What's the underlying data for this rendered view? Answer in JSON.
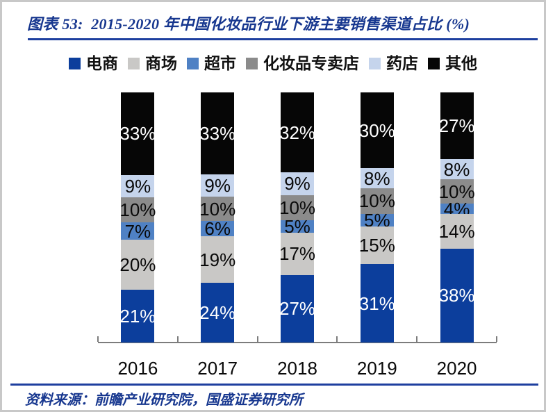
{
  "figure": {
    "title": "图表 53:  2015-2020 年中国化妆品行业下游主要销售渠道占比 (%)",
    "source": "资料来源：前瞻产业研究院，国盛证券研究所"
  },
  "colors": {
    "title_blue": "#17378F",
    "rule_blue": "#1E3F9F",
    "axis_gray": "#7C7C7C",
    "frame_gray": "#C8C8C8",
    "label_black": "#0A0A0A"
  },
  "chart_data": {
    "type": "bar",
    "stacked": true,
    "percent_normalized": true,
    "title": "2015-2020 年中国化妆品行业下游主要销售渠道占比 (%)",
    "categories": [
      "2016",
      "2017",
      "2018",
      "2019",
      "2020"
    ],
    "series": [
      {
        "name": "电商",
        "color": "#0C3E9C",
        "label_color": "#FFFFFF",
        "values": [
          21,
          24,
          27,
          31,
          38
        ]
      },
      {
        "name": "商场",
        "color": "#C9C8C6",
        "label_color": "#0A0A0A",
        "values": [
          20,
          19,
          17,
          15,
          14
        ]
      },
      {
        "name": "超市",
        "color": "#4F81C4",
        "label_color": "#0A0A0A",
        "values": [
          7,
          6,
          5,
          5,
          4
        ]
      },
      {
        "name": "化妆品专卖店",
        "color": "#8B8B8B",
        "label_color": "#0A0A0A",
        "values": [
          10,
          10,
          10,
          10,
          10
        ]
      },
      {
        "name": "药店",
        "color": "#C5D4EC",
        "label_color": "#0A0A0A",
        "values": [
          9,
          9,
          9,
          8,
          8
        ]
      },
      {
        "name": "其他",
        "color": "#060606",
        "label_color": "#FFFFFF",
        "values": [
          33,
          33,
          32,
          30,
          27
        ]
      }
    ],
    "value_suffix": "%",
    "ylim": [
      0,
      100
    ],
    "legend_position": "top",
    "grid": false
  }
}
